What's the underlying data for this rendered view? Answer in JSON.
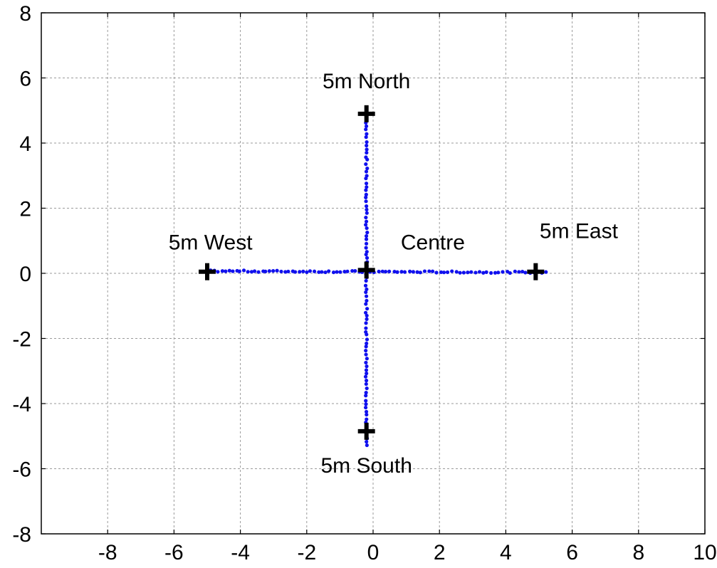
{
  "chart_data": {
    "type": "scatter",
    "xlim": [
      -10,
      10
    ],
    "ylim": [
      -8,
      8
    ],
    "xticks": [
      -8,
      -6,
      -4,
      -2,
      0,
      2,
      4,
      6,
      8,
      10
    ],
    "yticks": [
      -8,
      -6,
      -4,
      -2,
      0,
      2,
      4,
      6,
      8
    ],
    "grid": true,
    "colors": {
      "points": "#1010ee",
      "markers": "#000000",
      "grid": "#9a9a9a"
    },
    "markers": [
      {
        "label": "5m North",
        "x": -0.2,
        "y": 4.9
      },
      {
        "label": "5m West",
        "x": -5.0,
        "y": 0.05
      },
      {
        "label": "Centre",
        "x": -0.2,
        "y": 0.1
      },
      {
        "label": "5m East",
        "x": 4.9,
        "y": 0.05
      },
      {
        "label": "5m South",
        "x": -0.2,
        "y": -4.85
      }
    ],
    "annotations": [
      {
        "text": "5m North",
        "x": -0.2,
        "y": 5.9
      },
      {
        "text": "5m West",
        "x": -4.9,
        "y": 0.95
      },
      {
        "text": "Centre",
        "x": 1.8,
        "y": 0.95
      },
      {
        "text": "5m East",
        "x": 6.2,
        "y": 1.3
      },
      {
        "text": "5m South",
        "x": -0.2,
        "y": -5.9
      }
    ],
    "series": [
      {
        "segments": [
          {
            "from": [
              -0.2,
              4.75
            ],
            "to": [
              -0.2,
              0.1
            ],
            "n": 40
          },
          {
            "from": [
              -0.2,
              0.1
            ],
            "to": [
              -0.2,
              -5.3
            ],
            "n": 46
          },
          {
            "from": [
              -4.9,
              0.07
            ],
            "to": [
              -0.2,
              0.05
            ],
            "n": 42
          },
          {
            "from": [
              -0.2,
              0.05
            ],
            "to": [
              5.2,
              0.03
            ],
            "n": 46
          }
        ]
      }
    ]
  }
}
